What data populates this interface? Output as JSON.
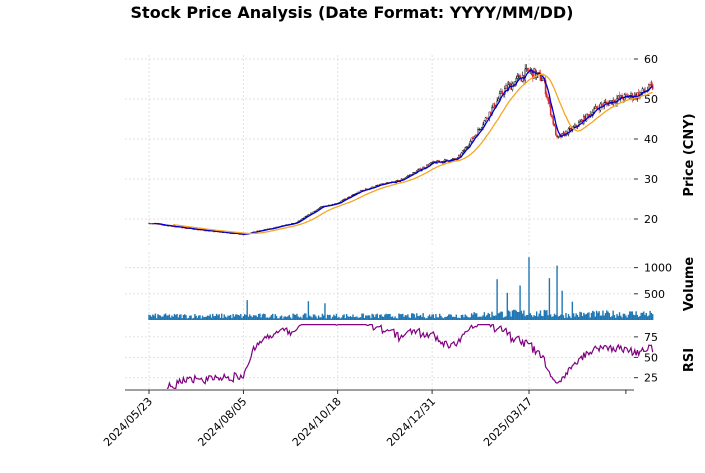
{
  "chart_data": {
    "type": "candlestick",
    "title": "Stock Price Analysis (Date Format: YYYY/MM/DD)",
    "x_tick_labels": [
      "2024/05/23",
      "2024/08/05",
      "2024/10/18",
      "2024/12/31",
      "2025/03/17"
    ],
    "x_tick_dates": [
      "2024-05-23",
      "2024-08-05",
      "2024-10-18",
      "2024-12-31",
      "2025-03-17"
    ],
    "date_range": [
      "2024-05-23",
      "2025-06-22"
    ],
    "grid": true,
    "price_panel": {
      "ylabel": "Price (CNY)",
      "yticks": [
        20,
        30,
        40,
        50,
        60
      ],
      "ylim": [
        13,
        61
      ],
      "close_anchors": [
        {
          "date": "2024-05-23",
          "value": 19.0
        },
        {
          "date": "2024-06-15",
          "value": 18.0
        },
        {
          "date": "2024-07-10",
          "value": 17.0
        },
        {
          "date": "2024-08-05",
          "value": 16.2
        },
        {
          "date": "2024-08-25",
          "value": 17.5
        },
        {
          "date": "2024-09-15",
          "value": 19.0
        },
        {
          "date": "2024-10-05",
          "value": 23.0
        },
        {
          "date": "2024-10-18",
          "value": 24.0
        },
        {
          "date": "2024-11-05",
          "value": 27.0
        },
        {
          "date": "2024-11-20",
          "value": 28.5
        },
        {
          "date": "2024-12-05",
          "value": 29.5
        },
        {
          "date": "2024-12-31",
          "value": 34.0
        },
        {
          "date": "2025-01-20",
          "value": 35.0
        },
        {
          "date": "2025-02-05",
          "value": 42.0
        },
        {
          "date": "2025-02-25",
          "value": 52.0
        },
        {
          "date": "2025-03-17",
          "value": 57.0
        },
        {
          "date": "2025-03-28",
          "value": 55.0
        },
        {
          "date": "2025-04-08",
          "value": 40.0
        },
        {
          "date": "2025-04-22",
          "value": 43.0
        },
        {
          "date": "2025-05-10",
          "value": 48.0
        },
        {
          "date": "2025-05-25",
          "value": 50.0
        },
        {
          "date": "2025-06-10",
          "value": 51.0
        },
        {
          "date": "2025-06-22",
          "value": 53.0
        }
      ],
      "series": [
        {
          "key": "ma_short",
          "color": "#0000cc",
          "window": 5
        },
        {
          "key": "ma_long",
          "color": "#f5a623",
          "window": 20
        }
      ],
      "up_color": "#000000",
      "down_color": "#d62728"
    },
    "volume_panel": {
      "ylabel": "Volume",
      "yticks": [
        500,
        1000
      ],
      "ylim": [
        0,
        1300
      ],
      "base_level": 70,
      "color": "#1f77b4",
      "spikes": [
        {
          "date": "2024-08-08",
          "value": 380
        },
        {
          "date": "2024-09-25",
          "value": 360
        },
        {
          "date": "2024-10-08",
          "value": 320
        },
        {
          "date": "2025-02-20",
          "value": 780
        },
        {
          "date": "2025-02-28",
          "value": 520
        },
        {
          "date": "2025-03-10",
          "value": 660
        },
        {
          "date": "2025-03-17",
          "value": 1200
        },
        {
          "date": "2025-04-02",
          "value": 800
        },
        {
          "date": "2025-04-08",
          "value": 1040
        },
        {
          "date": "2025-04-12",
          "value": 560
        },
        {
          "date": "2025-04-20",
          "value": 350
        }
      ]
    },
    "rsi_panel": {
      "ylabel": "RSI",
      "yticks": [
        25,
        50,
        75
      ],
      "ylim": [
        10,
        92
      ],
      "color": "#800080"
    }
  }
}
